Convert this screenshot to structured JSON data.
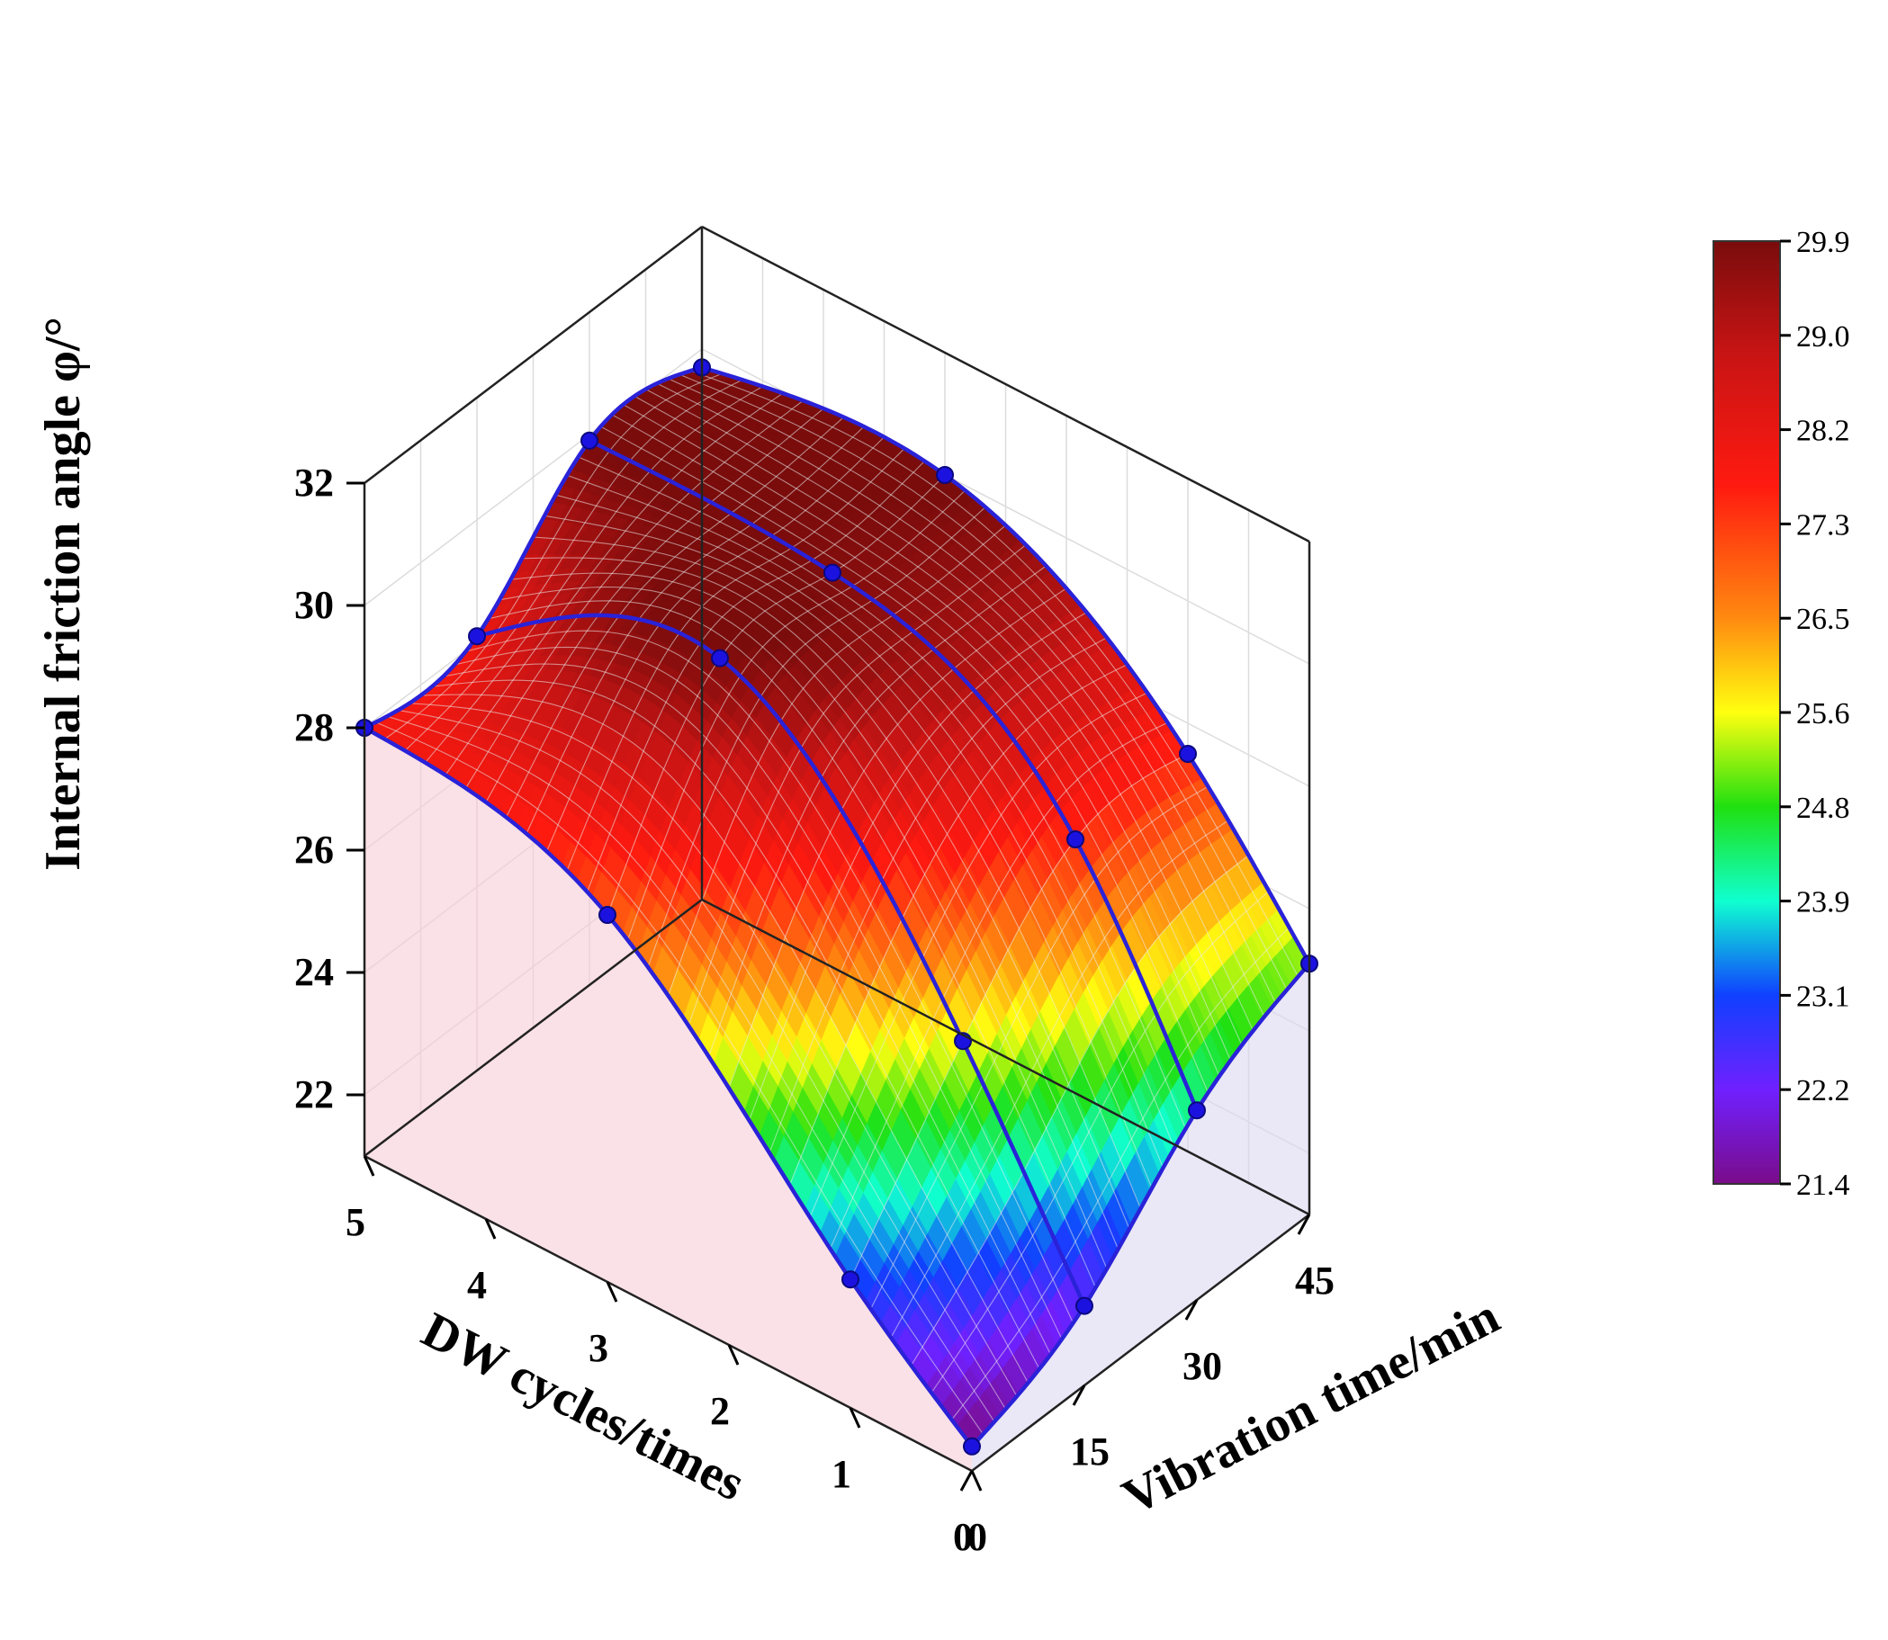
{
  "chart_data": {
    "type": "surface3d",
    "title": "",
    "xlabel": "DW cycles/times",
    "ylabel": "Vibration time/min",
    "zlabel": "Internal friction angle φ/°",
    "x_ticks": [
      0,
      1,
      2,
      3,
      4,
      5
    ],
    "y_ticks": [
      0,
      15,
      30,
      45
    ],
    "z_ticks": [
      22,
      24,
      26,
      28,
      30,
      32
    ],
    "xlim": [
      0,
      5
    ],
    "ylim": [
      0,
      45
    ],
    "zlim": [
      21,
      32
    ],
    "colorbar": {
      "ticks": [
        "29.9",
        "29.0",
        "28.2",
        "27.3",
        "26.5",
        "25.6",
        "24.8",
        "23.9",
        "23.1",
        "22.2",
        "21.4"
      ],
      "min": 21.4,
      "max": 29.9
    },
    "series": [
      {
        "vibration_time": 0,
        "dw_cycles": [
          0,
          1,
          3,
          5
        ],
        "values": [
          21.4,
          23.1,
          27.0,
          28.0
        ]
      },
      {
        "vibration_time": 15,
        "dw_cycles": [
          0,
          1,
          3,
          5
        ],
        "values": [
          22.3,
          25.6,
          29.8,
          28.1
        ]
      },
      {
        "vibration_time": 30,
        "dw_cycles": [
          0,
          1,
          3,
          5
        ],
        "values": [
          24.1,
          27.5,
          29.8,
          29.9
        ]
      },
      {
        "vibration_time": 45,
        "dw_cycles": [
          0,
          1,
          3,
          5
        ],
        "values": [
          25.1,
          27.5,
          30.0,
          29.7
        ]
      }
    ]
  }
}
